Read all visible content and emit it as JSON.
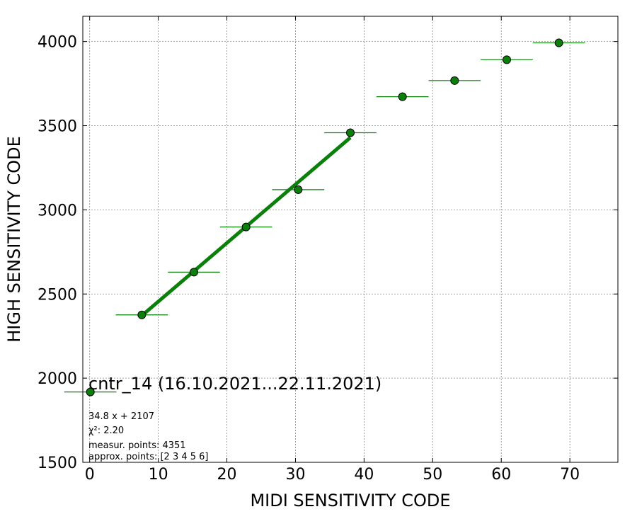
{
  "chart_data": {
    "type": "scatter",
    "title": "cntr_14 (16.10.2021...22.11.2021)",
    "xlabel": "MIDI SENSITIVITY CODE",
    "ylabel": "HIGH SENSITIVITY CODE",
    "xlim": [
      -1,
      77
    ],
    "ylim": [
      1500,
      4150
    ],
    "xticks": [
      0,
      10,
      20,
      30,
      40,
      50,
      60,
      70
    ],
    "yticks": [
      1500,
      2000,
      2500,
      3000,
      3500,
      4000
    ],
    "grid": true,
    "series": [
      {
        "points": [
          {
            "x": 0.1,
            "y": 1918,
            "xerr": 3.8,
            "yerr": 0
          },
          {
            "x": 7.6,
            "y": 2376,
            "xerr": 3.8,
            "yerr": 8
          },
          {
            "x": 15.2,
            "y": 2630,
            "xerr": 3.8,
            "yerr": 10
          },
          {
            "x": 22.8,
            "y": 2898,
            "xerr": 3.8,
            "yerr": 12
          },
          {
            "x": 30.4,
            "y": 3120,
            "xerr": 3.8,
            "yerr": 25
          },
          {
            "x": 38.0,
            "y": 3458,
            "xerr": 3.8,
            "yerr": 12
          },
          {
            "x": 45.6,
            "y": 3672,
            "xerr": 3.8,
            "yerr": 25
          },
          {
            "x": 53.2,
            "y": 3768,
            "xerr": 3.8,
            "yerr": 25
          },
          {
            "x": 60.8,
            "y": 3892,
            "xerr": 3.8,
            "yerr": 12
          },
          {
            "x": 68.4,
            "y": 3992,
            "xerr": 3.8,
            "yerr": 8
          }
        ]
      }
    ],
    "fit": {
      "slope": 34.8,
      "intercept": 2107,
      "x_range": [
        7.6,
        38.0
      ]
    },
    "annotations": [
      "34.8 x + 2107",
      "χ²: 2.20",
      "measur. points: 4351",
      "approx. points: [2 3 4 5 6]"
    ],
    "legend": "lower-left",
    "colors": {
      "marker": "#0a800a",
      "fit_line": "#0a800a",
      "grid": "#888888"
    }
  }
}
